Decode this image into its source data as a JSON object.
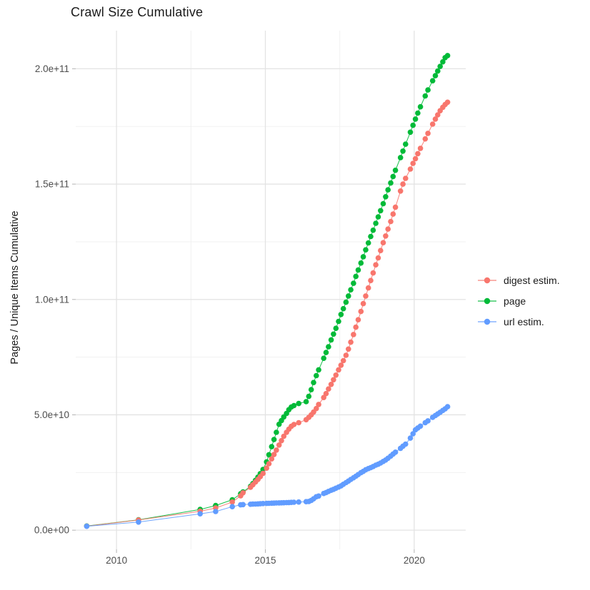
{
  "title": "Crawl Size Cumulative",
  "y_axis": {
    "title": "Pages / Unique Items Cumulative",
    "tick_labels": [
      "0.0e+00",
      "5.0e+10",
      "1.0e+11",
      "1.5e+11",
      "2.0e+11"
    ],
    "tick_values_e9": [
      0,
      50,
      100,
      150,
      200
    ],
    "minor_values_e9": [
      25,
      75,
      125,
      175
    ]
  },
  "x_axis": {
    "tick_labels": [
      "2010",
      "2015",
      "2020"
    ],
    "tick_values": [
      2010,
      2015,
      2020
    ],
    "minor_values": [
      2012.5,
      2017.5
    ]
  },
  "style": {
    "background": "#ffffff",
    "grid_major_color": "#e3e3e3",
    "grid_minor_color": "#efefef",
    "tick_mark_color": "#b3b3b3",
    "tick_label_color": "#4d4d4d",
    "text_color": "#1a1a1a"
  },
  "chart_data": {
    "type": "scatter",
    "title": "Crawl Size Cumulative",
    "xlabel": "",
    "ylabel": "Pages / Unique Items Cumulative",
    "unit": "values in billions of pages/items (1e9)",
    "legend_position": "right",
    "grid": true,
    "x_domain": [
      2008.63,
      2021.73
    ],
    "y_domain_e9": [
      -8.3,
      216.5
    ],
    "draw_order": [
      1,
      0,
      2
    ],
    "x": [
      2009.0,
      2010.74,
      2012.81,
      2013.33,
      2013.89,
      2014.17,
      2014.25,
      2014.5,
      2014.58,
      2014.67,
      2014.75,
      2014.83,
      2014.92,
      2015.04,
      2015.12,
      2015.21,
      2015.29,
      2015.37,
      2015.46,
      2015.54,
      2015.62,
      2015.71,
      2015.79,
      2015.87,
      2015.96,
      2016.12,
      2016.37,
      2016.46,
      2016.54,
      2016.62,
      2016.71,
      2016.79,
      2016.96,
      2017.04,
      2017.12,
      2017.21,
      2017.29,
      2017.37,
      2017.46,
      2017.54,
      2017.62,
      2017.71,
      2017.79,
      2017.87,
      2017.96,
      2018.04,
      2018.12,
      2018.21,
      2018.29,
      2018.37,
      2018.46,
      2018.54,
      2018.62,
      2018.71,
      2018.79,
      2018.87,
      2018.96,
      2019.04,
      2019.12,
      2019.21,
      2019.29,
      2019.37,
      2019.54,
      2019.62,
      2019.71,
      2019.87,
      2019.96,
      2020.04,
      2020.12,
      2020.21,
      2020.37,
      2020.46,
      2020.62,
      2020.71,
      2020.79,
      2020.87,
      2020.96,
      2021.04,
      2021.12
    ],
    "series": [
      {
        "name": "digest estim.",
        "color": "#F8766D",
        "values": [
          1.75,
          4.4,
          8.2,
          9.6,
          12.2,
          14.9,
          16.2,
          18.6,
          19.7,
          20.9,
          22.0,
          23.2,
          24.6,
          26.9,
          28.8,
          30.9,
          32.8,
          34.7,
          36.9,
          38.8,
          40.7,
          42.4,
          43.8,
          45.0,
          45.8,
          46.6,
          47.9,
          48.9,
          50.0,
          51.2,
          52.7,
          54.5,
          57.5,
          59.2,
          61.2,
          63.2,
          65.2,
          67.2,
          69.5,
          71.5,
          73.5,
          75.8,
          78.5,
          81.5,
          84.8,
          88.0,
          91.2,
          94.8,
          98.2,
          101.5,
          105.0,
          108.2,
          111.5,
          115.0,
          118.0,
          121.2,
          124.6,
          127.5,
          130.5,
          133.8,
          137.0,
          140.0,
          147.0,
          150.0,
          152.5,
          156.5,
          159.0,
          161.0,
          163.2,
          165.5,
          169.6,
          172.0,
          176.0,
          178.2,
          180.0,
          181.8,
          183.3,
          184.5,
          185.5
        ]
      },
      {
        "name": "page",
        "color": "#00BA38",
        "values": [
          1.8,
          4.5,
          9.0,
          10.7,
          13.2,
          15.8,
          16.6,
          19.0,
          20.2,
          21.6,
          23.0,
          24.5,
          26.3,
          29.6,
          32.7,
          36.2,
          39.3,
          42.4,
          45.9,
          47.5,
          49.1,
          50.6,
          52.2,
          53.4,
          54.0,
          54.9,
          55.7,
          58.0,
          60.9,
          64.0,
          67.0,
          69.5,
          74.5,
          77.0,
          79.5,
          82.5,
          85.0,
          87.5,
          90.5,
          93.5,
          96.0,
          98.8,
          101.5,
          104.2,
          107.0,
          110.0,
          112.8,
          115.8,
          118.5,
          121.5,
          124.5,
          127.3,
          130.0,
          133.0,
          135.8,
          138.5,
          141.5,
          144.5,
          147.5,
          150.5,
          153.3,
          156.0,
          161.5,
          164.3,
          167.3,
          172.5,
          175.5,
          178.2,
          180.8,
          183.5,
          188.2,
          190.8,
          194.8,
          197.0,
          199.0,
          201.0,
          203.0,
          204.8,
          205.7
        ]
      },
      {
        "name": "url estim.",
        "color": "#619CFF",
        "values": [
          1.7,
          3.5,
          7.1,
          8.1,
          10.2,
          11.0,
          11.1,
          11.25,
          11.3,
          11.35,
          11.4,
          11.45,
          11.55,
          11.6,
          11.65,
          11.7,
          11.75,
          11.8,
          11.83,
          11.87,
          11.9,
          11.95,
          12.0,
          12.05,
          12.1,
          12.2,
          12.35,
          12.45,
          12.9,
          13.6,
          14.5,
          14.8,
          15.9,
          16.3,
          16.8,
          17.3,
          17.7,
          18.2,
          18.7,
          19.2,
          19.9,
          20.6,
          21.3,
          22.0,
          22.7,
          23.4,
          24.1,
          24.9,
          25.5,
          26.2,
          26.7,
          27.1,
          27.6,
          28.2,
          28.6,
          29.1,
          29.8,
          30.4,
          31.2,
          32.1,
          33.0,
          33.8,
          35.5,
          36.4,
          37.3,
          39.9,
          41.8,
          43.5,
          44.3,
          45.1,
          46.6,
          47.4,
          48.9,
          49.7,
          50.4,
          51.1,
          51.9,
          52.6,
          53.5
        ]
      }
    ]
  }
}
